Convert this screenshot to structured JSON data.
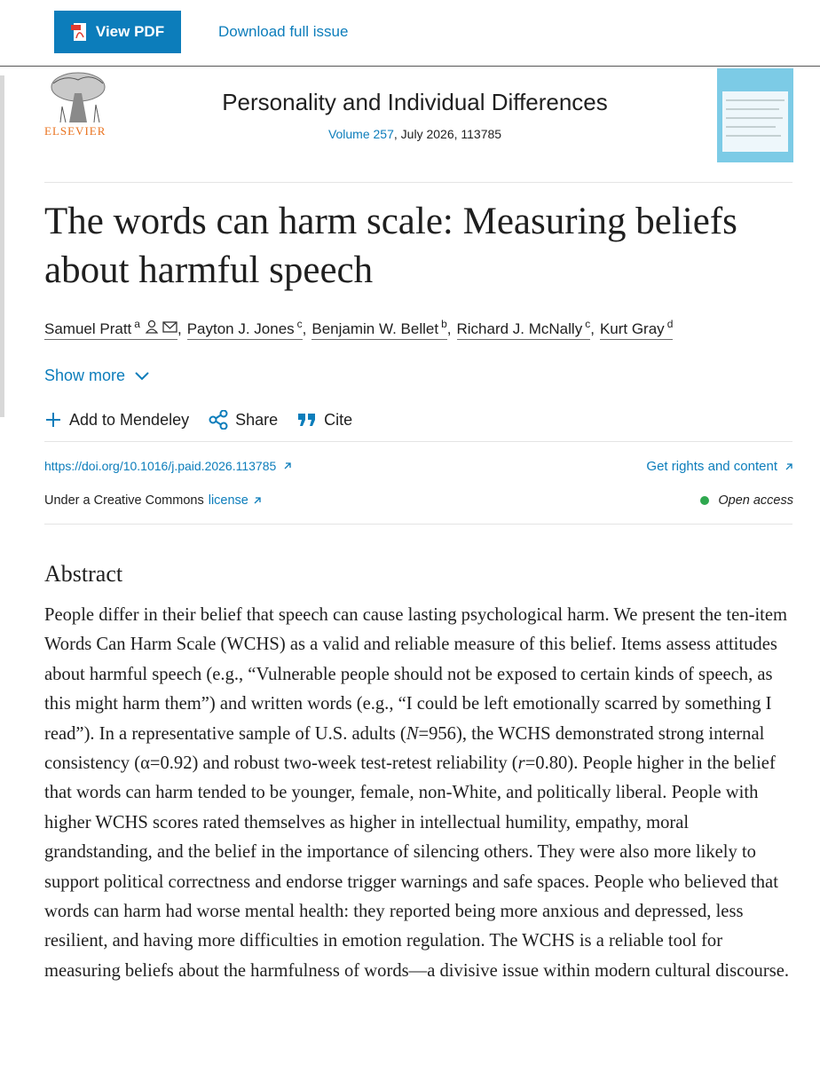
{
  "toolbar": {
    "view_pdf": "View PDF",
    "download": "Download full issue"
  },
  "journal": {
    "publisher": "ELSEVIER",
    "name": "Personality and Individual Differences",
    "volume": "Volume 257",
    "issue_details": ", July 2026, 113785"
  },
  "article": {
    "title": "The words can harm scale: Measuring beliefs about harmful speech",
    "authors": [
      {
        "name": "Samuel Pratt",
        "affiliation": "a"
      },
      {
        "name": "Payton J. Jones",
        "affiliation": "c"
      },
      {
        "name": "Benjamin W. Bellet",
        "affiliation": "b"
      },
      {
        "name": "Richard J. McNally",
        "affiliation": "c"
      },
      {
        "name": "Kurt Gray",
        "affiliation": "d"
      }
    ],
    "author_separator": ",",
    "show_more": "Show more",
    "actions": [
      "Add to Mendeley",
      "Share",
      "Cite"
    ],
    "doi": "https://doi.org/10.1016/j.paid.2026.113785",
    "rights": "Get rights and content",
    "license_prefix": "Under a Creative Commons",
    "license_link": "license",
    "open_access": "Open access"
  },
  "abstract": {
    "heading": "Abstract",
    "runs": [
      {
        "text": "People differ in their belief that speech can cause lasting psychological harm. We present the ten-item Words Can Harm Scale (WCHS) as a valid and reliable measure of this belief. Items assess attitudes about harmful speech (e.g., “Vulnerable people should not be exposed to certain kinds of speech, as this might harm them”) and written words (e.g., “I could be left emotionally scarred by something I read”). In a representative sample of U.S. adults (",
        "italic": false
      },
      {
        "text": "N",
        "italic": true
      },
      {
        "text": "=956), the WCHS demonstrated strong internal consistency (α=0.92) and robust two-week test-retest reliability (",
        "italic": false
      },
      {
        "text": "r",
        "italic": true
      },
      {
        "text": "=0.80). People higher in the belief that words can harm tended to be younger, female, non-White, and politically liberal. People with higher WCHS scores rated themselves as higher in intellectual humility, empathy, moral grandstanding, and the belief in the importance of silencing others. They were also more likely to support political correctness and endorse trigger warnings and safe spaces. People who believed that words can harm had worse mental health: they reported being more anxious and depressed, less resilient, and having more difficulties in emotion regulation. The WCHS is a reliable tool for measuring beliefs about the harmfulness of words—a divisive issue within modern cultural discourse.",
        "italic": false
      }
    ]
  }
}
